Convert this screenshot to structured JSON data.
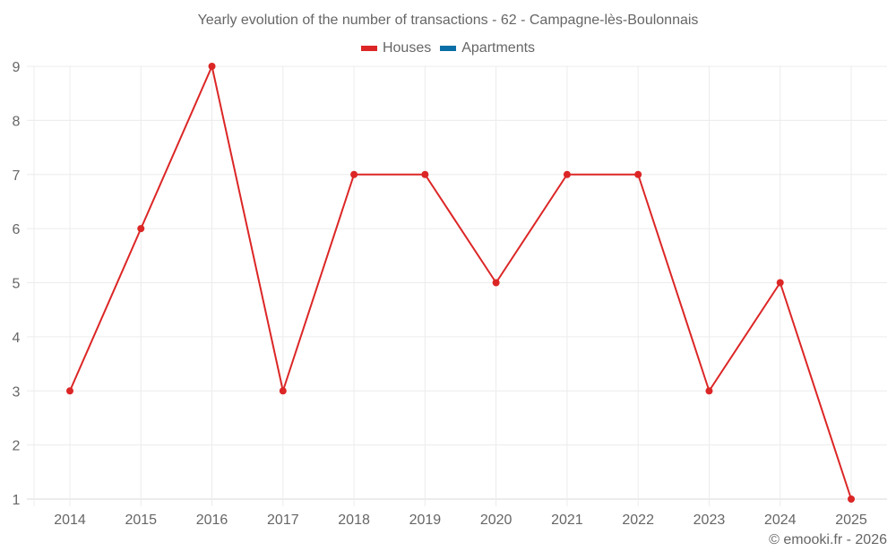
{
  "chart_data": {
    "type": "line",
    "title": "Yearly evolution of the number of transactions - 62 - Campagne-lès-Boulonnais",
    "xlabel": "",
    "ylabel": "",
    "categories": [
      "2014",
      "2015",
      "2016",
      "2017",
      "2018",
      "2019",
      "2020",
      "2021",
      "2022",
      "2023",
      "2024",
      "2025"
    ],
    "series": [
      {
        "name": "Houses",
        "color": "#dc2626",
        "values": [
          3,
          6,
          9,
          3,
          7,
          7,
          5,
          7,
          7,
          3,
          5,
          1
        ]
      },
      {
        "name": "Apartments",
        "color": "#0a6fa6",
        "values": []
      }
    ],
    "ylim": [
      1,
      9
    ],
    "yticks": [
      1,
      2,
      3,
      4,
      5,
      6,
      7,
      8,
      9
    ],
    "grid": true,
    "legend_position": "top"
  },
  "legend": {
    "items": [
      {
        "label": "Houses",
        "color": "#dc2626"
      },
      {
        "label": "Apartments",
        "color": "#0a6fa6"
      }
    ]
  },
  "credit": "© emooki.fr - 2026"
}
